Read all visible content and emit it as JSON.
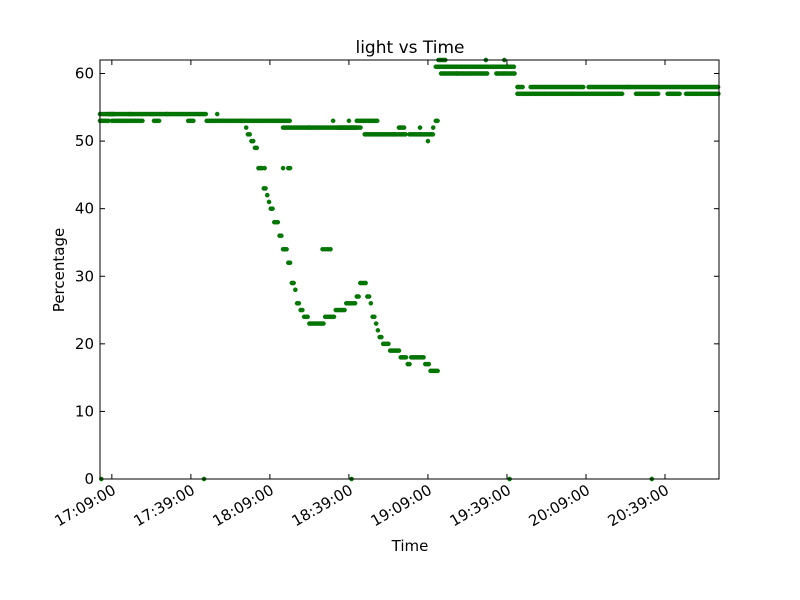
{
  "chart_data": {
    "type": "scatter",
    "title": "light vs Time",
    "xlabel": "Time",
    "ylabel": "Percentage",
    "ylim": [
      0,
      62
    ],
    "xlim": [
      "17:04:30",
      "20:59:30"
    ],
    "x_ticks": [
      "17:09:00",
      "17:39:00",
      "18:09:00",
      "18:39:00",
      "19:09:00",
      "19:39:00",
      "20:09:00",
      "20:39:00"
    ],
    "y_ticks": [
      0,
      10,
      20,
      30,
      40,
      50,
      60
    ],
    "grid": false,
    "color": "#007a00",
    "series": [
      {
        "segments": [
          {
            "from": "17:04:30",
            "to": "17:10:00",
            "y": 54
          },
          {
            "from": "17:04:30",
            "to": "17:08:00",
            "y": 53
          },
          {
            "from": "17:09:00",
            "to": "17:21:00",
            "y": 53
          },
          {
            "from": "17:08:00",
            "to": "17:24:00",
            "y": 54
          },
          {
            "from": "17:24:00",
            "to": "17:45:00",
            "y": 54
          },
          {
            "from": "17:25:00",
            "to": "17:27:00",
            "y": 53
          },
          {
            "from": "17:38:00",
            "to": "17:40:00",
            "y": 53
          },
          {
            "from": "17:45:00",
            "to": "17:58:00",
            "y": 53
          },
          {
            "from": "17:58:00",
            "to": "18:07:00",
            "y": 53
          },
          {
            "from": "18:07:00",
            "to": "18:12:00",
            "y": 53
          },
          {
            "from": "18:12:00",
            "to": "18:17:00",
            "y": 53
          },
          {
            "from": "18:14:00",
            "to": "18:42:00",
            "y": 52
          },
          {
            "from": "18:42:00",
            "to": "18:50:00",
            "y": 53
          },
          {
            "from": "18:35:00",
            "to": "18:44:00",
            "y": 52
          },
          {
            "from": "18:45:00",
            "to": "18:56:00",
            "y": 51
          },
          {
            "from": "18:56:00",
            "to": "19:01:00",
            "y": 51
          },
          {
            "from": "19:02:00",
            "to": "19:07:00",
            "y": 51
          },
          {
            "from": "19:07:00",
            "to": "19:11:00",
            "y": 51
          },
          {
            "from": "18:58:00",
            "to": "19:00:00",
            "y": 52
          },
          {
            "from": "19:12:00",
            "to": "19:13:00",
            "y": 53
          },
          {
            "from": "19:12:00",
            "to": "19:30:00",
            "y": 61
          },
          {
            "from": "19:13:00",
            "to": "19:16:00",
            "y": 62
          },
          {
            "from": "19:14:00",
            "to": "19:20:00",
            "y": 60
          },
          {
            "from": "19:20:00",
            "to": "19:25:00",
            "y": 60
          },
          {
            "from": "19:25:00",
            "to": "19:32:00",
            "y": 60
          },
          {
            "from": "19:30:00",
            "to": "19:42:00",
            "y": 61
          },
          {
            "from": "19:35:00",
            "to": "19:38:00",
            "y": 60
          },
          {
            "from": "19:38:00",
            "to": "19:42:00",
            "y": 60
          },
          {
            "from": "19:43:00",
            "to": "19:45:00",
            "y": 58
          },
          {
            "from": "19:43:00",
            "to": "20:04:00",
            "y": 57
          },
          {
            "from": "19:48:00",
            "to": "19:57:00",
            "y": 58
          },
          {
            "from": "19:57:00",
            "to": "20:08:00",
            "y": 58
          },
          {
            "from": "20:04:00",
            "to": "20:23:00",
            "y": 57
          },
          {
            "from": "20:10:00",
            "to": "20:25:00",
            "y": 58
          },
          {
            "from": "20:25:00",
            "to": "20:43:00",
            "y": 58
          },
          {
            "from": "20:28:00",
            "to": "20:37:00",
            "y": 57
          },
          {
            "from": "20:43:00",
            "to": "20:59:30",
            "y": 58
          },
          {
            "from": "20:40:00",
            "to": "20:45:00",
            "y": 57
          },
          {
            "from": "20:47:00",
            "to": "20:59:30",
            "y": 57
          }
        ],
        "points": [
          [
            "17:16:00",
            54
          ],
          [
            "17:30:00",
            54
          ],
          [
            "17:49:00",
            54
          ],
          [
            "18:02:00",
            50
          ],
          [
            "18:24:00",
            52
          ],
          [
            "18:33:00",
            53
          ],
          [
            "18:39:00",
            53
          ],
          [
            "19:06:00",
            52
          ],
          [
            "19:09:00",
            50
          ],
          [
            "19:11:00",
            52
          ],
          [
            "19:31:00",
            62
          ],
          [
            "19:34:00",
            61
          ],
          [
            "19:38:00",
            62
          ],
          [
            "17:05:00",
            0
          ],
          [
            "17:44:00",
            0
          ],
          [
            "18:40:00",
            0
          ],
          [
            "19:40:00",
            0
          ],
          [
            "20:34:00",
            0
          ],
          [
            "18:00:00",
            52
          ],
          [
            "18:00:40",
            51
          ],
          [
            "18:01:20",
            51
          ],
          [
            "18:02:40",
            50
          ],
          [
            "18:03:20",
            49
          ],
          [
            "18:04:00",
            49
          ],
          [
            "18:04:40",
            46
          ],
          [
            "18:05:20",
            46
          ],
          [
            "18:06:00",
            46
          ],
          [
            "18:06:40",
            43
          ],
          [
            "18:07:20",
            43
          ],
          [
            "18:08:00",
            42
          ],
          [
            "18:08:40",
            41
          ],
          [
            "18:09:20",
            40
          ],
          [
            "18:10:00",
            40
          ],
          [
            "18:10:40",
            38
          ],
          [
            "18:11:20",
            38
          ],
          [
            "18:12:00",
            38
          ],
          [
            "18:12:40",
            36
          ],
          [
            "18:13:20",
            36
          ],
          [
            "18:14:00",
            34
          ],
          [
            "18:14:40",
            34
          ],
          [
            "18:15:20",
            34
          ],
          [
            "18:16:00",
            32
          ],
          [
            "18:16:40",
            32
          ],
          [
            "18:17:20",
            29
          ],
          [
            "18:18:00",
            29
          ],
          [
            "18:18:40",
            28
          ],
          [
            "18:19:20",
            26
          ],
          [
            "18:20:00",
            26
          ],
          [
            "18:20:40",
            25
          ],
          [
            "18:21:20",
            25
          ],
          [
            "18:22:00",
            24
          ],
          [
            "18:22:40",
            24
          ],
          [
            "18:23:20",
            24
          ],
          [
            "18:24:00",
            23
          ],
          [
            "18:24:40",
            23
          ],
          [
            "18:25:20",
            23
          ],
          [
            "18:26:00",
            23
          ],
          [
            "18:26:40",
            23
          ],
          [
            "18:27:20",
            23
          ],
          [
            "18:28:00",
            23
          ],
          [
            "18:28:40",
            23
          ],
          [
            "18:29:20",
            23
          ],
          [
            "18:30:00",
            24
          ],
          [
            "18:30:40",
            24
          ],
          [
            "18:31:20",
            24
          ],
          [
            "18:32:00",
            24
          ],
          [
            "18:32:40",
            24
          ],
          [
            "18:33:20",
            24
          ],
          [
            "18:34:00",
            25
          ],
          [
            "18:34:40",
            25
          ],
          [
            "18:35:20",
            25
          ],
          [
            "18:36:00",
            25
          ],
          [
            "18:36:40",
            25
          ],
          [
            "18:37:20",
            25
          ],
          [
            "18:38:00",
            26
          ],
          [
            "18:38:40",
            26
          ],
          [
            "18:39:20",
            26
          ],
          [
            "18:40:00",
            26
          ],
          [
            "18:40:40",
            26
          ],
          [
            "18:41:20",
            26
          ],
          [
            "18:42:00",
            27
          ],
          [
            "18:42:40",
            27
          ],
          [
            "18:43:20",
            29
          ],
          [
            "18:44:00",
            29
          ],
          [
            "18:44:40",
            29
          ],
          [
            "18:45:20",
            29
          ],
          [
            "18:46:00",
            27
          ],
          [
            "18:46:40",
            27
          ],
          [
            "18:47:20",
            26
          ],
          [
            "18:48:00",
            24
          ],
          [
            "18:48:40",
            24
          ],
          [
            "18:49:20",
            23
          ],
          [
            "18:50:00",
            22
          ],
          [
            "18:50:40",
            21
          ],
          [
            "18:51:20",
            21
          ],
          [
            "18:52:00",
            20
          ],
          [
            "18:52:40",
            20
          ],
          [
            "18:53:20",
            20
          ],
          [
            "18:54:00",
            20
          ],
          [
            "18:54:40",
            19
          ],
          [
            "18:55:20",
            19
          ],
          [
            "18:56:00",
            19
          ],
          [
            "18:56:40",
            19
          ],
          [
            "18:57:20",
            19
          ],
          [
            "18:58:00",
            19
          ],
          [
            "18:58:40",
            18
          ],
          [
            "18:59:20",
            18
          ],
          [
            "19:00:00",
            18
          ],
          [
            "19:00:40",
            18
          ],
          [
            "19:01:20",
            17
          ],
          [
            "19:02:00",
            17
          ],
          [
            "19:02:40",
            18
          ],
          [
            "19:03:20",
            18
          ],
          [
            "19:04:00",
            18
          ],
          [
            "19:04:40",
            18
          ],
          [
            "19:05:20",
            18
          ],
          [
            "19:06:00",
            18
          ],
          [
            "19:06:40",
            18
          ],
          [
            "19:07:20",
            18
          ],
          [
            "19:08:00",
            17
          ],
          [
            "19:08:40",
            17
          ],
          [
            "19:09:20",
            17
          ],
          [
            "19:10:00",
            16
          ],
          [
            "19:10:40",
            16
          ],
          [
            "19:11:20",
            16
          ],
          [
            "19:12:00",
            16
          ],
          [
            "19:12:40",
            16
          ],
          [
            "18:07:00",
            46
          ],
          [
            "18:14:00",
            46
          ],
          [
            "18:16:00",
            46
          ],
          [
            "18:16:40",
            46
          ],
          [
            "18:29:00",
            34
          ],
          [
            "18:30:00",
            34
          ],
          [
            "18:31:00",
            34
          ],
          [
            "18:32:00",
            34
          ]
        ]
      }
    ]
  }
}
